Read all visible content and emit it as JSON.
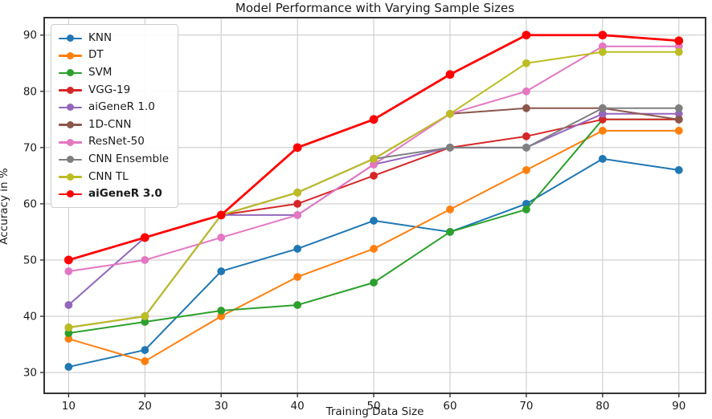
{
  "chart_data": {
    "type": "line",
    "title": "Model Performance with Varying Sample Sizes",
    "xlabel": "Training Data Size",
    "ylabel": "Accuracy in %",
    "x": [
      10,
      20,
      30,
      40,
      50,
      60,
      70,
      80,
      90
    ],
    "x_ticks": [
      10,
      20,
      30,
      40,
      50,
      60,
      70,
      80,
      90
    ],
    "y_ticks": [
      30,
      40,
      50,
      60,
      70,
      80,
      90
    ],
    "xlim": [
      6.8,
      93.5
    ],
    "ylim": [
      26.3,
      93.1
    ],
    "grid": true,
    "legend_position": "upper left",
    "series": [
      {
        "name": "KNN",
        "color": "#1f77b4",
        "bold": false,
        "linewidth": 2,
        "values": [
          31,
          34,
          48,
          52,
          57,
          55,
          60,
          68,
          66
        ]
      },
      {
        "name": "DT",
        "color": "#ff7f0e",
        "bold": false,
        "linewidth": 2,
        "values": [
          36,
          32,
          40,
          47,
          52,
          59,
          66,
          73,
          73
        ]
      },
      {
        "name": "SVM",
        "color": "#2ca02c",
        "bold": false,
        "linewidth": 2,
        "values": [
          37,
          39,
          41,
          42,
          46,
          55,
          59,
          75,
          75
        ]
      },
      {
        "name": "VGG-19",
        "color": "#d62728",
        "bold": false,
        "linewidth": 2,
        "values": [
          50,
          54,
          58,
          60,
          65,
          70,
          72,
          75,
          75
        ]
      },
      {
        "name": "aiGeneR 1.0",
        "color": "#9467bd",
        "bold": false,
        "linewidth": 2,
        "values": [
          42,
          54,
          58,
          58,
          67,
          70,
          70,
          76,
          76
        ]
      },
      {
        "name": "1D-CNN",
        "color": "#8c564b",
        "bold": false,
        "linewidth": 2,
        "values": [
          38,
          40,
          58,
          62,
          68,
          76,
          77,
          77,
          75
        ]
      },
      {
        "name": "ResNet-50",
        "color": "#e377c2",
        "bold": false,
        "linewidth": 2,
        "values": [
          48,
          50,
          54,
          58,
          67,
          76,
          80,
          88,
          88
        ]
      },
      {
        "name": "CNN Ensemble",
        "color": "#7f7f7f",
        "bold": false,
        "linewidth": 2,
        "values": [
          38,
          40,
          58,
          62,
          68,
          70,
          70,
          77,
          77
        ]
      },
      {
        "name": "CNN TL",
        "color": "#bcbd22",
        "bold": false,
        "linewidth": 2,
        "values": [
          38,
          40,
          58,
          62,
          68,
          76,
          85,
          87,
          87
        ]
      },
      {
        "name": "aiGeneR 3.0",
        "color": "#ff0000",
        "bold": true,
        "linewidth": 2.8,
        "values": [
          50,
          54,
          58,
          70,
          75,
          83,
          90,
          90,
          89
        ]
      }
    ]
  },
  "figure": {
    "background_color": "#ffffff",
    "grid_color": "#cccccc",
    "spine_color": "#333333",
    "text_color": "#1a1a1a"
  }
}
